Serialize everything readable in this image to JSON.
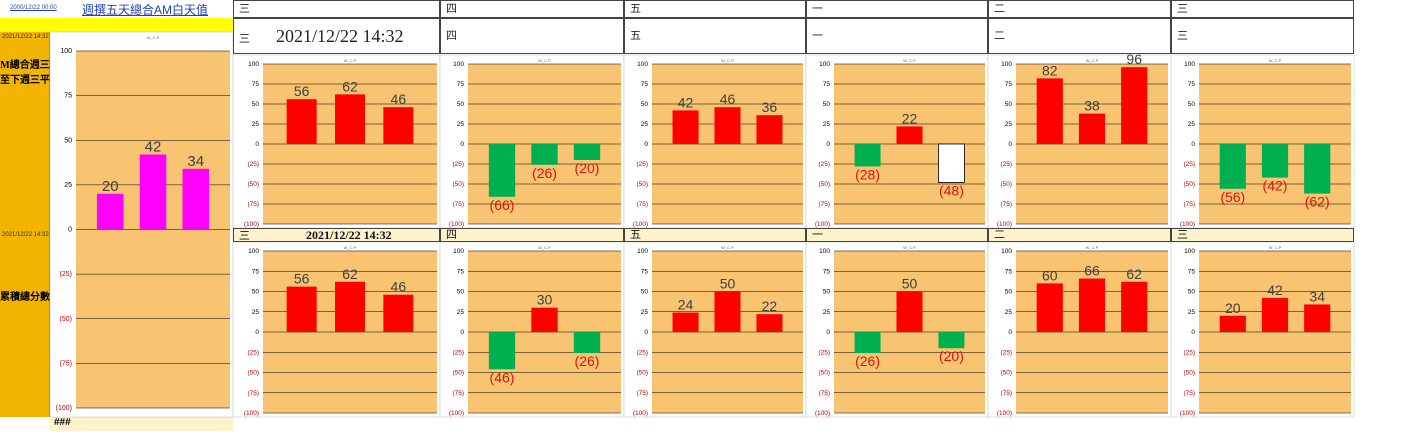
{
  "header": {
    "top_date": "2000/12/22 00:00",
    "title": "週撰五天總合AM白天值",
    "timestamp_main": "2021/12/22 14:32",
    "timestamp_mid": "2021/12/22 14:32",
    "left_date_top": "2021/12/22 14:32",
    "left_date_mid": "2021/12/22 14:32",
    "left_label_top": "M總合週三至下週三平",
    "left_label_bottom": "累積總分數",
    "footer_hash": "###",
    "top_days": [
      "三",
      "四",
      "五",
      "一",
      "二",
      "三"
    ],
    "row1_days": [
      "三",
      "四",
      "五",
      "一",
      "二",
      "三"
    ],
    "mid_days": [
      "三",
      "四",
      "五",
      "一",
      "二",
      "三"
    ]
  },
  "colors": {
    "plot_bg": "#f8c471",
    "positive": "#ff0000",
    "negative": "#00b050",
    "magenta": "#ff00ff",
    "outline_only": "#ffffff",
    "sidebar": "#f2b400",
    "yellow_bar": "#ffff00"
  },
  "chart_data": [
    {
      "id": "summary",
      "type": "bar",
      "title": "W_C.P",
      "ylim": [
        -100,
        100
      ],
      "yticks": [
        "100",
        "75",
        "50",
        "25",
        "0",
        "(25)",
        "(50)",
        "(75)",
        "(100)"
      ],
      "values": [
        20,
        42,
        34
      ],
      "labels": [
        "20",
        "42",
        "34"
      ],
      "color": "magenta"
    },
    {
      "id": "r1c1",
      "type": "bar",
      "title": "W_C.P",
      "ylim": [
        -100,
        100
      ],
      "yticks": [
        "100",
        "75",
        "50",
        "25",
        "0",
        "(25)",
        "(50)",
        "(75)",
        "(100)"
      ],
      "values": [
        56,
        62,
        46
      ],
      "labels": [
        "56",
        "62",
        "46"
      ]
    },
    {
      "id": "r1c2",
      "type": "bar",
      "title": "W_C.P",
      "ylim": [
        -100,
        100
      ],
      "yticks": [
        "100",
        "75",
        "50",
        "25",
        "0",
        "(25)",
        "(50)",
        "(75)",
        "(100)"
      ],
      "values": [
        -66,
        -26,
        -20
      ],
      "labels": [
        "(66)",
        "(26)",
        "(20)"
      ]
    },
    {
      "id": "r1c3",
      "type": "bar",
      "title": "W_C.P",
      "ylim": [
        -100,
        100
      ],
      "yticks": [
        "100",
        "75",
        "50",
        "25",
        "0",
        "(25)",
        "(50)",
        "(75)",
        "(100)"
      ],
      "values": [
        42,
        46,
        36
      ],
      "labels": [
        "42",
        "46",
        "36"
      ]
    },
    {
      "id": "r1c4",
      "type": "bar",
      "title": "W_C.P",
      "ylim": [
        -100,
        100
      ],
      "yticks": [
        "100",
        "75",
        "50",
        "25",
        "0",
        "(25)",
        "(50)",
        "(75)",
        "(100)"
      ],
      "values": [
        -28,
        22,
        -48
      ],
      "labels": [
        "(28)",
        "22",
        "(48)"
      ],
      "outline_index": 2
    },
    {
      "id": "r1c5",
      "type": "bar",
      "title": "W_C.P",
      "ylim": [
        -100,
        100
      ],
      "yticks": [
        "100",
        "75",
        "50",
        "25",
        "0",
        "(25)",
        "(50)",
        "(75)",
        "(100)"
      ],
      "values": [
        82,
        38,
        96
      ],
      "labels": [
        "82",
        "38",
        "96"
      ]
    },
    {
      "id": "r1c6",
      "type": "bar",
      "title": "W_C.P",
      "ylim": [
        -100,
        100
      ],
      "yticks": [
        "100",
        "75",
        "50",
        "25",
        "0",
        "(25)",
        "(50)",
        "(75)",
        "(100)"
      ],
      "values": [
        -56,
        -42,
        -62
      ],
      "labels": [
        "(56)",
        "(42)",
        "(62)"
      ]
    },
    {
      "id": "r2c1",
      "type": "bar",
      "title": "W_C.P",
      "ylim": [
        -100,
        100
      ],
      "yticks": [
        "100",
        "75",
        "50",
        "25",
        "0",
        "(25)",
        "(50)",
        "(75)",
        "(100)"
      ],
      "values": [
        56,
        62,
        46
      ],
      "labels": [
        "56",
        "62",
        "46"
      ]
    },
    {
      "id": "r2c2",
      "type": "bar",
      "title": "W_C.P",
      "ylim": [
        -100,
        100
      ],
      "yticks": [
        "100",
        "75",
        "50",
        "25",
        "0",
        "(25)",
        "(50)",
        "(75)",
        "(100)"
      ],
      "values": [
        -46,
        30,
        -26
      ],
      "labels": [
        "(46)",
        "30",
        "(26)"
      ]
    },
    {
      "id": "r2c3",
      "type": "bar",
      "title": "W_C.P",
      "ylim": [
        -100,
        100
      ],
      "yticks": [
        "100",
        "75",
        "50",
        "25",
        "0",
        "(25)",
        "(50)",
        "(75)",
        "(100)"
      ],
      "values": [
        24,
        50,
        22
      ],
      "labels": [
        "24",
        "50",
        "22"
      ]
    },
    {
      "id": "r2c4",
      "type": "bar",
      "title": "W_C.P",
      "ylim": [
        -100,
        100
      ],
      "yticks": [
        "100",
        "75",
        "50",
        "25",
        "0",
        "(25)",
        "(50)",
        "(75)",
        "(100)"
      ],
      "values": [
        -26,
        50,
        -20
      ],
      "labels": [
        "(26)",
        "50",
        "(20)"
      ]
    },
    {
      "id": "r2c5",
      "type": "bar",
      "title": "W_C.P",
      "ylim": [
        -100,
        100
      ],
      "yticks": [
        "100",
        "75",
        "50",
        "25",
        "0",
        "(25)",
        "(50)",
        "(75)",
        "(100)"
      ],
      "values": [
        60,
        66,
        62
      ],
      "labels": [
        "60",
        "66",
        "62"
      ]
    },
    {
      "id": "r2c6",
      "type": "bar",
      "title": "W_C.P",
      "ylim": [
        -100,
        100
      ],
      "yticks": [
        "100",
        "75",
        "50",
        "25",
        "0",
        "(25)",
        "(50)",
        "(75)",
        "(100)"
      ],
      "values": [
        20,
        42,
        34
      ],
      "labels": [
        "20",
        "42",
        "34"
      ]
    }
  ]
}
